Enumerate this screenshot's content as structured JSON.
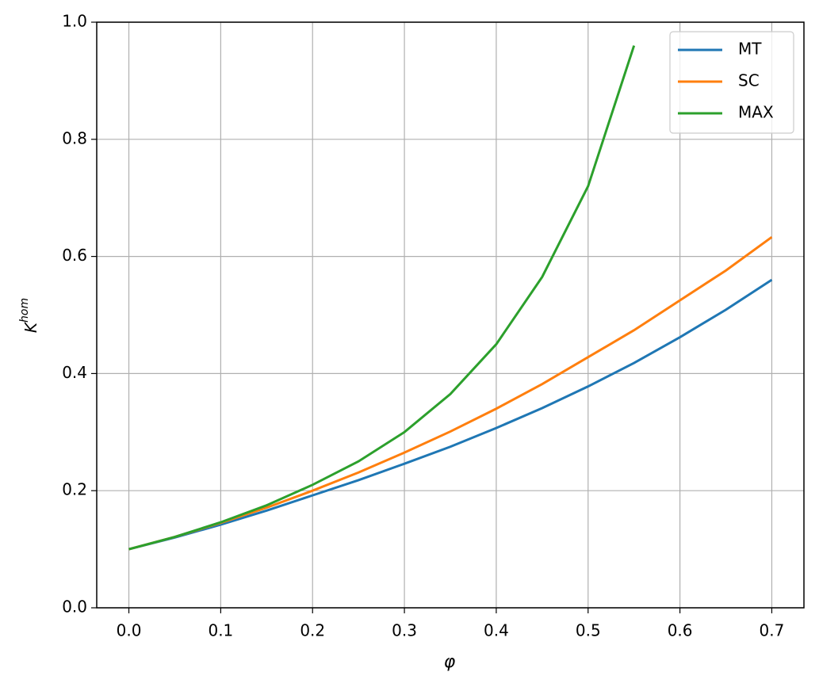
{
  "chart_data": {
    "type": "line",
    "x_label": "φ",
    "y_label": "K",
    "y_label_sup": "hom",
    "x": [
      0,
      0.05,
      0.1,
      0.15,
      0.2,
      0.25,
      0.3,
      0.35,
      0.4,
      0.45,
      0.5,
      0.55,
      0.6,
      0.65,
      0.7
    ],
    "series": [
      {
        "name": "MT",
        "color": "#1f77b4",
        "values": [
          0.1,
          0.12,
          0.142,
          0.166,
          0.192,
          0.218,
          0.246,
          0.275,
          0.307,
          0.341,
          0.378,
          0.418,
          0.462,
          0.509,
          0.56
        ]
      },
      {
        "name": "SC",
        "color": "#ff7f0e",
        "values": [
          0.1,
          0.121,
          0.145,
          0.171,
          0.2,
          0.231,
          0.265,
          0.301,
          0.34,
          0.382,
          0.428,
          0.474,
          0.525,
          0.576,
          0.633
        ]
      },
      {
        "name": "MAX",
        "color": "#2ca02c",
        "values": [
          0.1,
          0.121,
          0.146,
          0.175,
          0.21,
          0.25,
          0.3,
          0.365,
          0.45,
          0.565,
          0.72,
          0.96,
          null,
          null,
          null
        ]
      }
    ],
    "xlim": [
      -0.035,
      0.735
    ],
    "ylim": [
      0,
      1
    ],
    "xticks": [
      {
        "value": 0,
        "label": "0.0"
      },
      0.1,
      0.2,
      0.3,
      0.4,
      0.5,
      0.6,
      0.7
    ],
    "yticks": [
      {
        "value": 0,
        "label": "0.0"
      },
      0.2,
      0.4,
      0.6,
      0.8,
      {
        "value": 1,
        "label": "1.0"
      }
    ],
    "grid": true,
    "legend": "upper right"
  }
}
